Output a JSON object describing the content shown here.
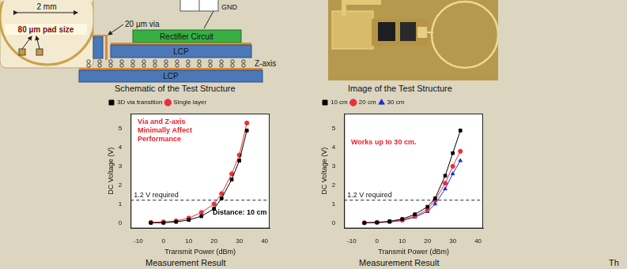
{
  "slide": {
    "schematic": {
      "inset_dimension": "2 mm",
      "inset_pad": "80 µm pad size",
      "via": "20 µm via",
      "gnd": "GND",
      "circuit": "Rectifier Circuit",
      "upper_layer": "LCP",
      "lower_layer": "LCP",
      "interconnect": "Z-axis",
      "caption": "Schematic of the Test Structure"
    },
    "image_caption": "Image of the Test Structure",
    "chart_captions": [
      "Measurement Result",
      "Measurement Result"
    ],
    "edge_text": "Th"
  },
  "chart_data": [
    {
      "type": "line",
      "x_label": "Transmit Power (dBm)",
      "y_label": "DC Voltage (V)",
      "x": [
        -5,
        0,
        5,
        10,
        15,
        20,
        23,
        27,
        30,
        33
      ],
      "series": [
        {
          "name": "3D via transition",
          "color": "#000000",
          "marker": "square",
          "values": [
            0,
            0,
            0.05,
            0.15,
            0.35,
            0.75,
            1.3,
            2.3,
            3.3,
            4.9
          ]
        },
        {
          "name": "Single layer",
          "color": "#e8303a",
          "marker": "circle",
          "values": [
            0.02,
            0.05,
            0.1,
            0.25,
            0.55,
            1.0,
            1.55,
            2.6,
            3.6,
            5.3
          ]
        }
      ],
      "xlim": [
        -13,
        42
      ],
      "xticks": [
        -10,
        0,
        10,
        20,
        30,
        40
      ],
      "ylim": [
        -0.3,
        5.8
      ],
      "yticks": [
        0,
        1,
        2,
        3,
        4,
        5
      ],
      "grid": false,
      "legend": "upper left",
      "reference_line": {
        "value": 1.2,
        "label": "1.2 V required",
        "line_style": "dashed"
      },
      "annotations": [
        {
          "text": [
            "Via and Z-axis",
            "Minimally Affect",
            "Performance"
          ],
          "color": "#e8202a"
        },
        {
          "text": [
            "Distance: 10 cm"
          ],
          "color": "#000000"
        }
      ]
    },
    {
      "type": "line",
      "x_label": "Transmit Power (dBm)",
      "y_label": "DC Voltage (V)",
      "x": [
        -5,
        0,
        5,
        10,
        15,
        20,
        23,
        27,
        30,
        33
      ],
      "series": [
        {
          "name": "10 cm",
          "color": "#000000",
          "marker": "square",
          "values": [
            0,
            0.02,
            0.08,
            0.2,
            0.45,
            0.85,
            1.3,
            2.5,
            3.7,
            4.9
          ]
        },
        {
          "name": "20 cm",
          "color": "#e8303a",
          "marker": "circle",
          "values": [
            0,
            0.02,
            0.06,
            0.15,
            0.35,
            0.7,
            1.2,
            2.1,
            3.0,
            3.8
          ]
        },
        {
          "name": "30 cm",
          "color": "#2030d0",
          "marker": "triangle",
          "values": [
            0,
            0.01,
            0.04,
            0.12,
            0.3,
            0.6,
            1.0,
            1.8,
            2.6,
            3.3
          ]
        }
      ],
      "xlim": [
        -13,
        42
      ],
      "xticks": [
        -10,
        0,
        10,
        20,
        30,
        40
      ],
      "ylim": [
        -0.3,
        5.8
      ],
      "yticks": [
        0,
        1,
        2,
        3,
        4,
        5
      ],
      "grid": false,
      "legend": "upper left",
      "reference_line": {
        "value": 1.2,
        "label": "1.2 V required",
        "line_style": "dashed"
      },
      "annotations": [
        {
          "text": [
            "Works up to 30 cm."
          ],
          "color": "#e8202a"
        }
      ]
    }
  ]
}
